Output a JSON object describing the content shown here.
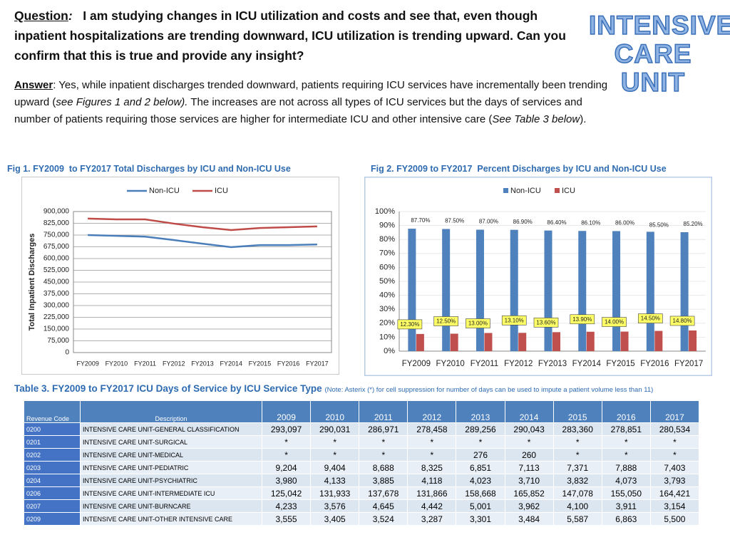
{
  "question": {
    "label": "Question",
    "colon": ":",
    "text": "I am studying changes in ICU utilization and costs and see that, even though inpatient hospitalizations are trending downward, ICU utilization is trending upward. Can you confirm that this is true and provide any insight?"
  },
  "answer": [
    "Answer",
    ": Yes, while inpatient discharges trended downward, patients requiring ICU services have incrementally been trending upward (",
    "see Figures 1 and 2 below).",
    "  The increases are not across all types of ICU services but the days of services and number of patients requiring those services are higher for intermediate ICU and other intensive care (",
    "See Table 3 below",
    ")."
  ],
  "logo": [
    "INTENSIVE",
    "CARE",
    "UNIT"
  ],
  "chart_data": [
    {
      "type": "line",
      "title": "Fig 1. FY2009  to FY2017 Total Discharges by ICU and Non-ICU Use",
      "y_label": "Total Inpatient Discharges",
      "categories": [
        "FY2009",
        "FY2010",
        "FY2011",
        "FY2012",
        "FY2013",
        "FY2014",
        "FY2015",
        "FY2016",
        "FY2017"
      ],
      "series": [
        {
          "name": "Non-ICU",
          "color": "#4a7ebb",
          "values": [
            750000,
            745000,
            740000,
            718000,
            695000,
            673000,
            686000,
            686000,
            690000
          ]
        },
        {
          "name": "ICU",
          "color": "#be4b48",
          "values": [
            855000,
            850000,
            850000,
            823000,
            800000,
            782000,
            795000,
            800000,
            805000
          ]
        }
      ],
      "ylim": [
        0,
        900000
      ],
      "yticks": [
        0,
        {
          "value": 75000,
          "label": "75,000"
        },
        {
          "value": 150000,
          "label": "150,000"
        },
        {
          "value": 225000,
          "label": "225,000"
        },
        {
          "value": 300000,
          "label": "300,000"
        },
        {
          "value": 375000,
          "label": "375,000"
        },
        {
          "value": 450000,
          "label": "450,000"
        },
        {
          "value": 525000,
          "label": "525,000"
        },
        {
          "value": 600000,
          "label": "600,000"
        },
        {
          "value": 675000,
          "label": "675,000"
        },
        {
          "value": 750000,
          "label": "750,000"
        },
        {
          "value": 825000,
          "label": "825,000"
        },
        {
          "value": 900000,
          "label": "900,000"
        }
      ],
      "grid": true
    },
    {
      "type": "bar",
      "title": "Fig 2. FY2009 to FY2017  Percent Discharges by ICU and Non-ICU Use",
      "categories": [
        "FY2009",
        "FY2010",
        "FY2011",
        "FY2012",
        "FY2013",
        "FY2014",
        "FY2015",
        "FY2016",
        "FY2017"
      ],
      "series": [
        {
          "name": "Non-ICU",
          "color": "#4f81bd",
          "values": [
            87.7,
            87.5,
            87.0,
            86.9,
            86.4,
            86.1,
            86.0,
            85.5,
            85.2
          ],
          "value_labels": [
            "87.70%",
            "87.50%",
            "87.00%",
            "86.90%",
            "86.40%",
            "86.10%",
            "86.00%",
            "85.50%",
            "85.20%"
          ]
        },
        {
          "name": "ICU",
          "color": "#c0504d",
          "values": [
            12.3,
            12.5,
            13.0,
            13.1,
            13.6,
            13.9,
            14.0,
            14.5,
            14.8
          ],
          "value_labels": [
            "12.30%",
            "12.50%",
            "13.00%",
            "13.10%",
            "13.60%",
            "13.90%",
            "14.00%",
            "14.50%",
            "14.80%"
          ]
        }
      ],
      "ylim": [
        0,
        100
      ],
      "yticks": [
        {
          "value": 0,
          "label": "0%"
        },
        {
          "value": 10,
          "label": "10%"
        },
        {
          "value": 20,
          "label": "20%"
        },
        {
          "value": 30,
          "label": "30%"
        },
        {
          "value": 40,
          "label": "40%"
        },
        {
          "value": 50,
          "label": "50%"
        },
        {
          "value": 60,
          "label": "60%"
        },
        {
          "value": 70,
          "label": "70%"
        },
        {
          "value": 80,
          "label": "80%"
        },
        {
          "value": 90,
          "label": "90%"
        },
        {
          "value": 100,
          "label": "100%"
        }
      ],
      "grid": true
    }
  ],
  "table": {
    "title": "Table 3. FY2009 to FY2017 ICU Days of Service by ICU Service Type",
    "note": "(Note: Asterix (*) for cell suppression for number of days can be used to impute a patient volume less than 11)",
    "columns": [
      "Revenue Code",
      "Description",
      "2009",
      "2010",
      "2011",
      "2012",
      "2013",
      "2014",
      "2015",
      "2016",
      "2017"
    ],
    "rows": [
      [
        "0200",
        "INTENSIVE CARE UNIT-GENERAL CLASSIFICATION",
        "293,097",
        "290,031",
        "286,971",
        "278,458",
        "289,256",
        "290,043",
        "283,360",
        "278,851",
        "280,534"
      ],
      [
        "0201",
        "INTENSIVE CARE UNIT-SURGICAL",
        "*",
        "*",
        "*",
        "*",
        "*",
        "*",
        "*",
        "*",
        "*"
      ],
      [
        "0202",
        "INTENSIVE CARE UNIT-MEDICAL",
        "*",
        "*",
        "*",
        "*",
        "276",
        "260",
        "*",
        "*",
        "*"
      ],
      [
        "0203",
        "INTENSIVE CARE UNIT-PEDIATRIC",
        "9,204",
        "9,404",
        "8,688",
        "8,325",
        "6,851",
        "7,113",
        "7,371",
        "7,888",
        "7,403"
      ],
      [
        "0204",
        "INTENSIVE CARE UNIT-PSYCHIATRIC",
        "3,980",
        "4,133",
        "3,885",
        "4,118",
        "4,023",
        "3,710",
        "3,832",
        "4,073",
        "3,793"
      ],
      [
        "0206",
        "INTENSIVE CARE UNIT-INTERMEDIATE ICU",
        "125,042",
        "131,933",
        "137,678",
        "131,866",
        "158,668",
        "165,852",
        "147,078",
        "155,050",
        "164,421"
      ],
      [
        "0207",
        "INTENSIVE CARE UNIT-BURNCARE",
        "4,233",
        "3,576",
        "4,645",
        "4,442",
        "5,001",
        "3,962",
        "4,100",
        "3,911",
        "3,154"
      ],
      [
        "0209",
        "INTENSIVE CARE UNIT-OTHER INTENSIVE CARE",
        "3,555",
        "3,405",
        "3,524",
        "3,287",
        "3,301",
        "3,484",
        "5,587",
        "6,863",
        "5,500"
      ]
    ]
  }
}
